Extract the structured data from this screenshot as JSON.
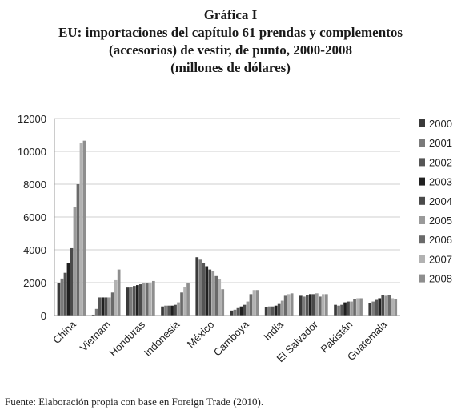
{
  "chart_data": {
    "type": "bar",
    "title": "Gráfica I",
    "subtitle_lines": [
      "EU: importaciones del capítulo 61 prendas y complementos",
      "(accesorios) de vestir, de punto, 2000-2008",
      "(millones de dólares)"
    ],
    "xlabel": "",
    "ylabel": "",
    "ylim": [
      0,
      12000
    ],
    "yticks": [
      "0",
      "2000",
      "4000",
      "6000",
      "8000",
      "10000",
      "12000"
    ],
    "grid": true,
    "legend_position": "right",
    "categories": [
      "China",
      "Vietnam",
      "Honduras",
      "Indonesia",
      "México",
      "Camboya",
      "India",
      "El Salvador",
      "Pakistán",
      "Guatemala"
    ],
    "series": [
      {
        "name": "2000",
        "color": "#3a3a3a",
        "values": [
          2000,
          50,
          1700,
          550,
          3550,
          300,
          500,
          1200,
          650,
          750
        ]
      },
      {
        "name": "2001",
        "color": "#7a7a7a",
        "values": [
          2250,
          400,
          1750,
          600,
          3400,
          350,
          550,
          1150,
          600,
          850
        ]
      },
      {
        "name": "2002",
        "color": "#555555",
        "values": [
          2600,
          1100,
          1800,
          600,
          3200,
          450,
          550,
          1250,
          650,
          950
        ]
      },
      {
        "name": "2003",
        "color": "#202020",
        "values": [
          3200,
          1100,
          1850,
          600,
          3000,
          550,
          600,
          1300,
          800,
          1050
        ]
      },
      {
        "name": "2004",
        "color": "#4a4a4a",
        "values": [
          4100,
          1100,
          1900,
          650,
          2800,
          650,
          700,
          1300,
          850,
          1250
        ]
      },
      {
        "name": "2005",
        "color": "#9a9a9a",
        "values": [
          6600,
          1100,
          1950,
          800,
          2700,
          850,
          900,
          1350,
          850,
          1200
        ]
      },
      {
        "name": "2006",
        "color": "#6a6a6a",
        "values": [
          8000,
          1400,
          1950,
          1400,
          2400,
          1300,
          1200,
          1150,
          1000,
          1250
        ]
      },
      {
        "name": "2007",
        "color": "#b2b2b2",
        "values": [
          10500,
          2150,
          1950,
          1750,
          2200,
          1550,
          1300,
          1300,
          1050,
          1050
        ]
      },
      {
        "name": "2008",
        "color": "#8e8e8e",
        "values": [
          10650,
          2800,
          2100,
          1950,
          1600,
          1550,
          1350,
          1300,
          1050,
          1000
        ]
      }
    ]
  },
  "source_note": "Fuente: Elaboración propia con base en Foreign Trade (2010)."
}
